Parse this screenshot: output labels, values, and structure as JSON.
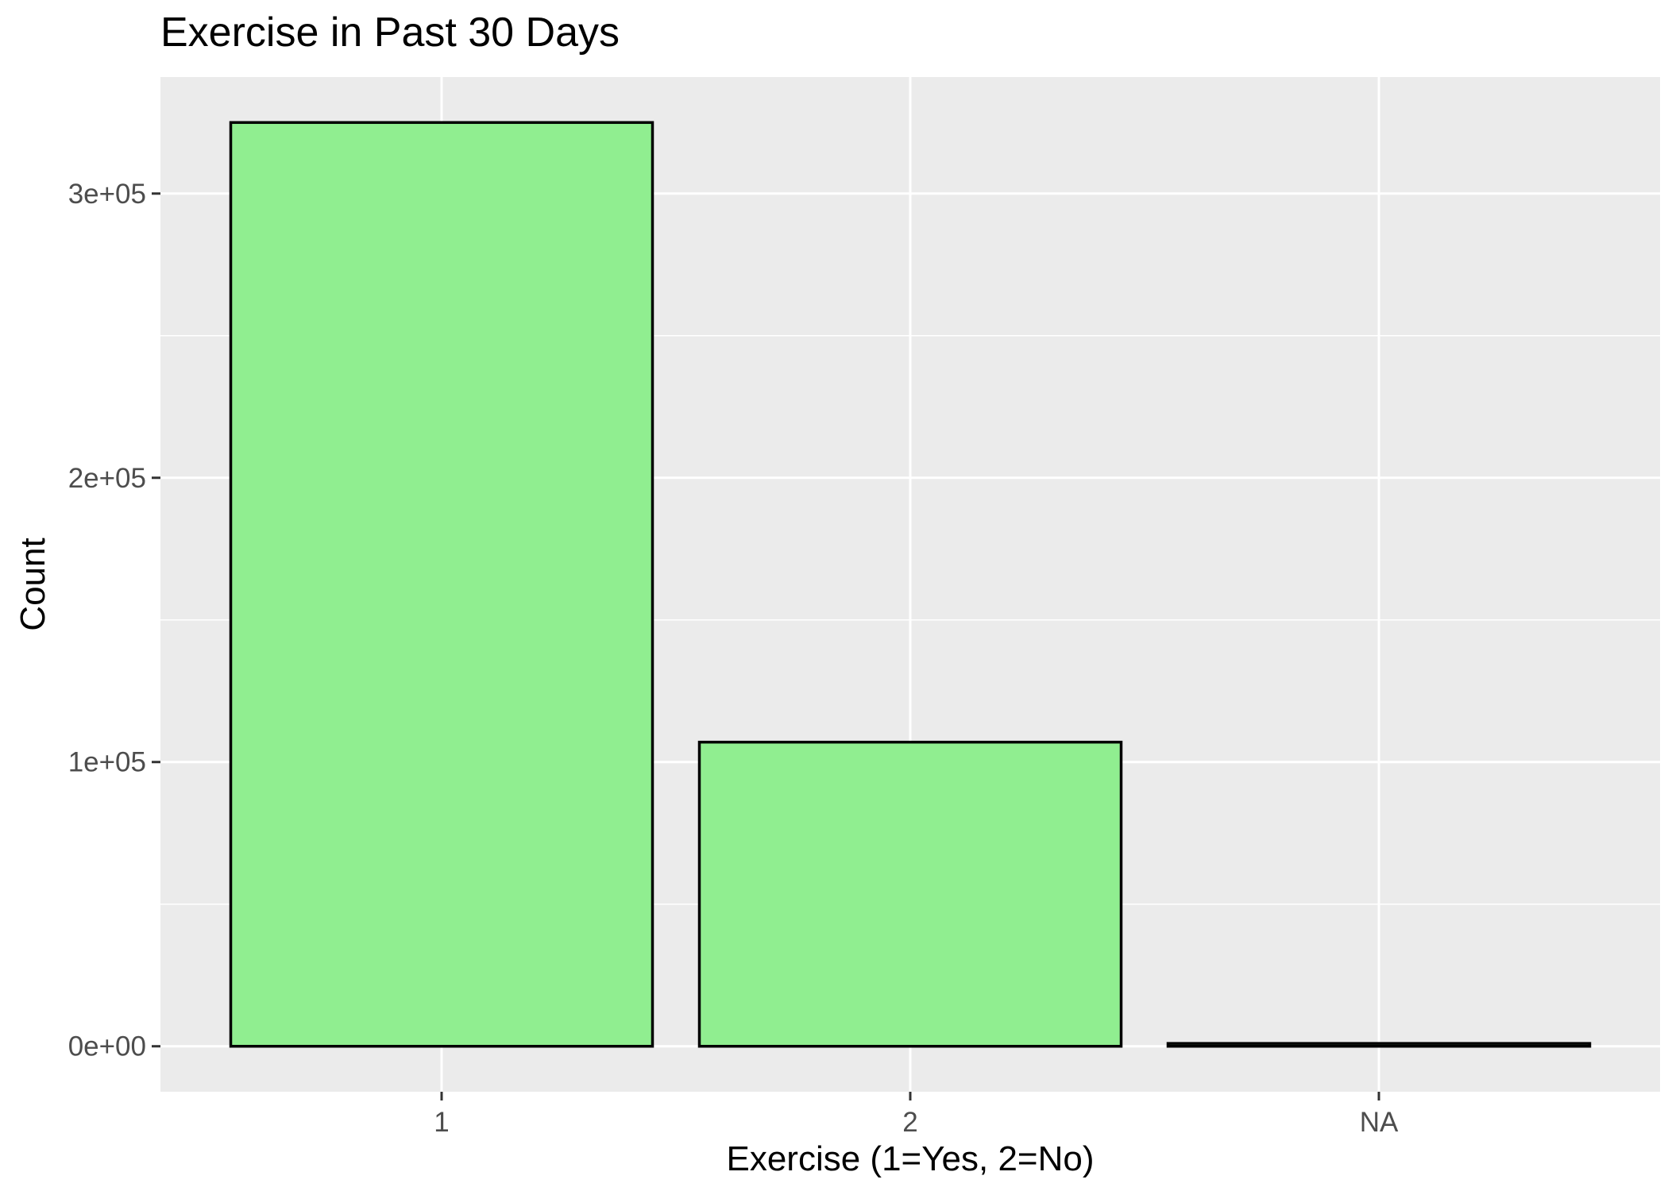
{
  "chart_data": {
    "type": "bar",
    "title": "Exercise in Past 30 Days",
    "xlabel": "Exercise (1=Yes, 2=No)",
    "ylabel": "Count",
    "categories": [
      "1",
      "2",
      "NA"
    ],
    "values": [
      325000,
      107000,
      1000
    ],
    "ylim": [
      -16000,
      341000
    ],
    "yticks": [
      0,
      100000,
      200000,
      300000
    ],
    "ytick_labels": [
      "0e+00",
      "1e+05",
      "2e+05",
      "3e+05"
    ],
    "grid": true,
    "legend": "none",
    "colors": {
      "bar_fill": "#90EE90",
      "bar_outline": "#000000",
      "panel_background": "#EBEBEB",
      "grid_line": "#FFFFFF",
      "tick_label": "#4D4D4D",
      "tick_mark": "#333333"
    }
  }
}
